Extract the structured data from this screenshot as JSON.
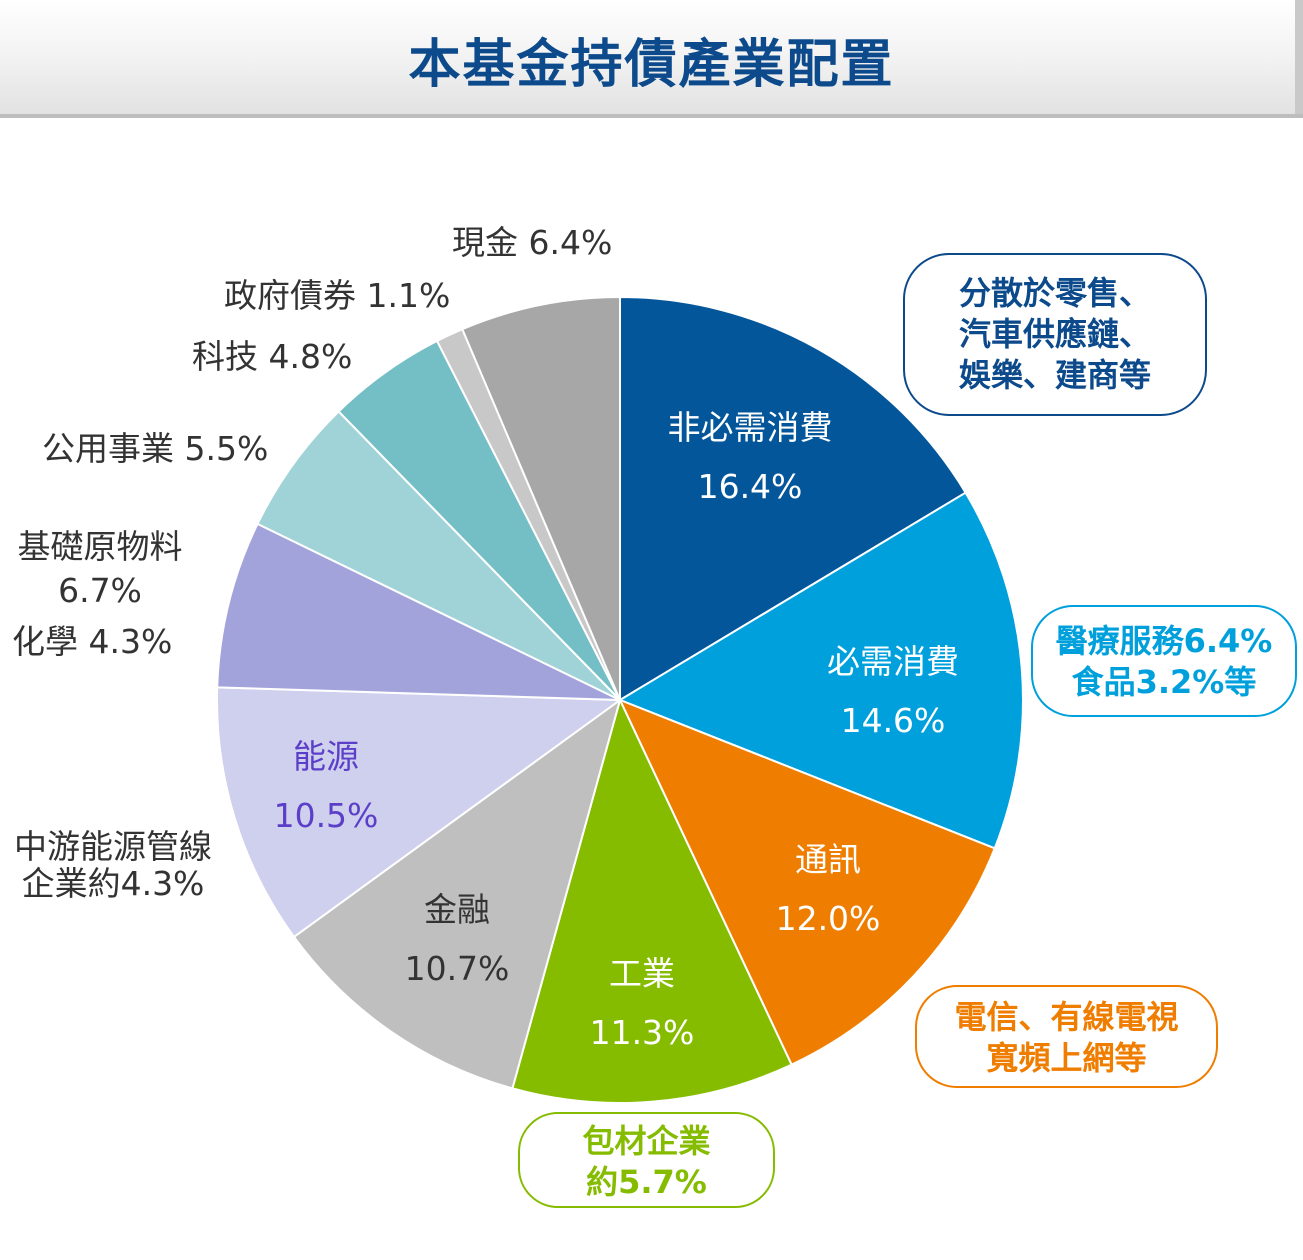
{
  "title": "本基金持債產業配置",
  "chart_data": {
    "type": "pie",
    "title": "本基金持債產業配置",
    "start_angle": "12 o'clock",
    "direction": "clockwise",
    "slices": [
      {
        "key": "consumer-disc",
        "name": "非必需消費",
        "pct": "16.4%",
        "value": 16.4,
        "color": "#03569A"
      },
      {
        "key": "consumer-staples",
        "name": "必需消費",
        "pct": "14.6%",
        "value": 14.6,
        "color": "#00A0DC"
      },
      {
        "key": "telecom",
        "name": "通訊",
        "pct": "12.0%",
        "value": 12.0,
        "color": "#EF7D00"
      },
      {
        "key": "industrials",
        "name": "工業",
        "pct": "11.3%",
        "value": 11.3,
        "color": "#85BC00"
      },
      {
        "key": "financials",
        "name": "金融",
        "pct": "10.7%",
        "value": 10.7,
        "color": "#BFBFBF"
      },
      {
        "key": "energy",
        "name": "能源",
        "pct": "10.5%",
        "value": 10.5,
        "color": "#CFCFEE"
      },
      {
        "key": "materials",
        "name": "基礎原物料",
        "pct": "6.7%",
        "value": 6.7,
        "color": "#A3A3DC"
      },
      {
        "key": "utilities",
        "name": "公用事業",
        "pct": "5.5%",
        "value": 5.5,
        "color": "#A0D3D7"
      },
      {
        "key": "technology",
        "name": "科技",
        "pct": "4.8%",
        "value": 4.8,
        "color": "#74BEC5"
      },
      {
        "key": "government",
        "name": "政府債券",
        "pct": "1.1%",
        "value": 1.1,
        "color": "#C8C8C8"
      },
      {
        "key": "cash",
        "name": "現金",
        "pct": "6.4%",
        "value": 6.4,
        "color": "#A7A7A7"
      }
    ],
    "sub_labels": {
      "chemicals": "化學 4.3%",
      "midstream_line1": "中游能源管線",
      "midstream_line2": "企業約4.3%"
    },
    "callouts": [
      {
        "key": "consumer-disc",
        "lines": [
          "分散於零售、",
          "汽車供應鏈、",
          "娛樂、建商等"
        ],
        "color": "#0D4A8C"
      },
      {
        "key": "consumer-staples",
        "lines": [
          "醫療服務6.4%",
          "食品3.2%等"
        ],
        "color": "#00A0DC"
      },
      {
        "key": "telecom",
        "lines": [
          "電信、有線電視",
          "寬頻上網等"
        ],
        "color": "#EF7D00"
      },
      {
        "key": "industrials",
        "lines": [
          "包材企業",
          "約5.7%"
        ],
        "color": "#85BC00"
      }
    ],
    "label_colors": {
      "inside": "#FFFFFF",
      "energy": "#5B3FC9",
      "financials": "#333333",
      "outside": "#333333"
    },
    "legend": "none"
  }
}
